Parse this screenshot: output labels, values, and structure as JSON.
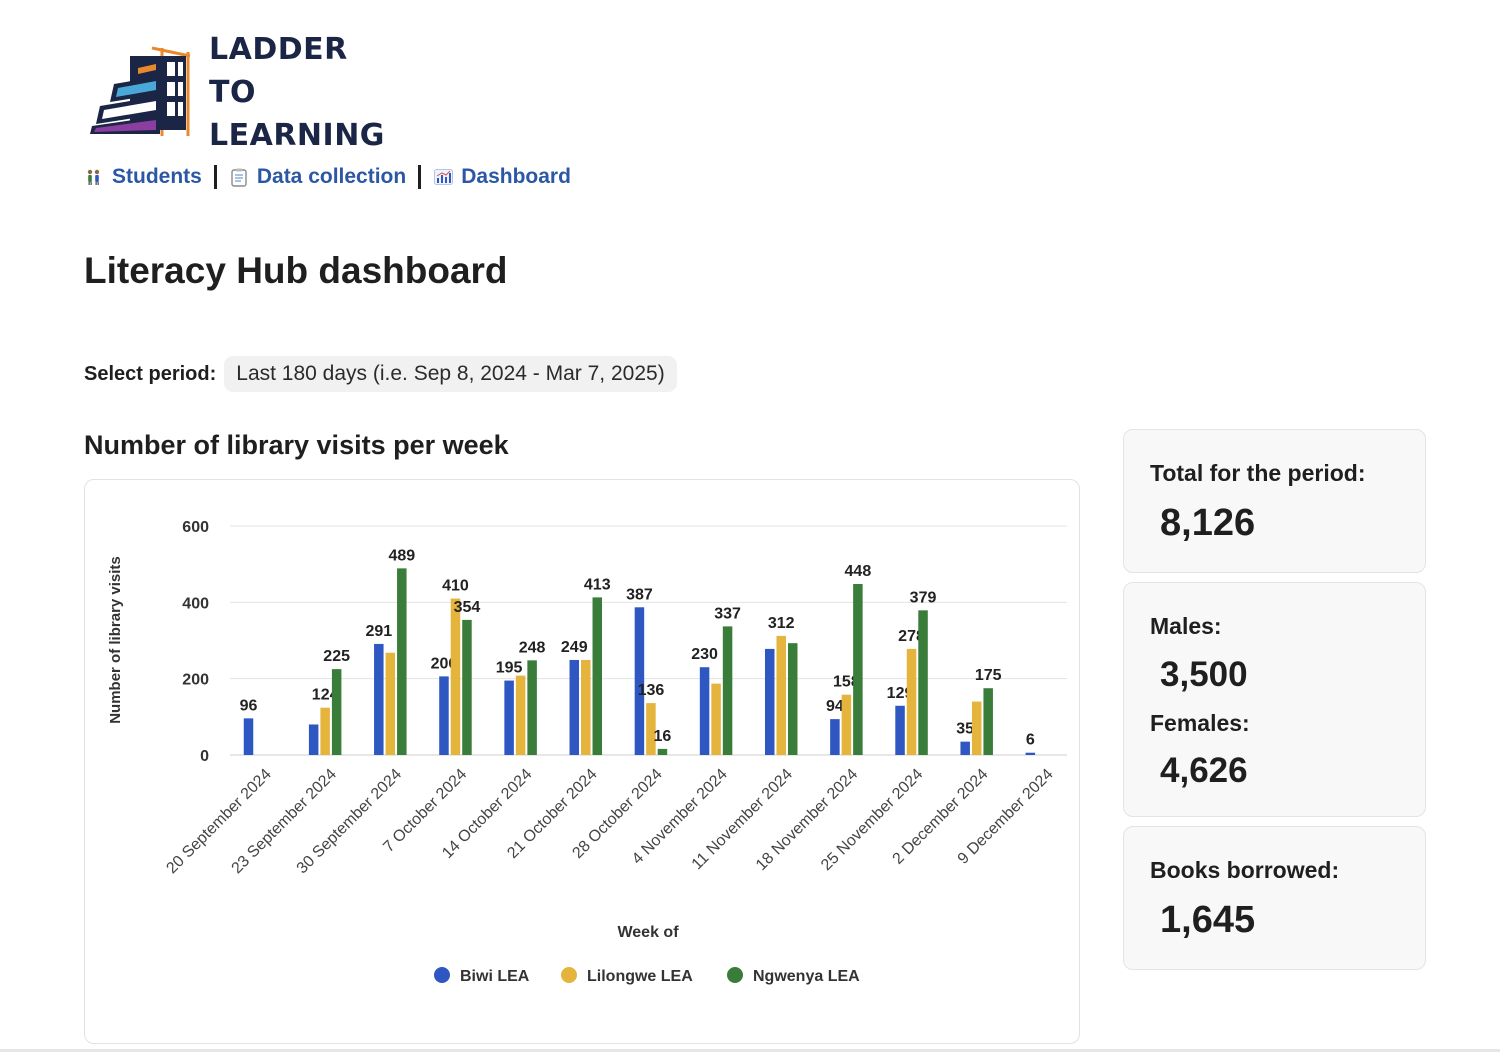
{
  "logo": {
    "line1": "LADDER",
    "line2": "TO LEARNING"
  },
  "nav": {
    "items": [
      {
        "label": "Students",
        "icon": "people-icon"
      },
      {
        "label": "Data collection",
        "icon": "clipboard-icon"
      },
      {
        "label": "Dashboard",
        "icon": "bar-chart-icon"
      }
    ]
  },
  "page_title": "Literacy Hub dashboard",
  "period": {
    "label": "Select period:",
    "value": "Last 180 days (i.e. Sep 8, 2024 - Mar 7, 2025)"
  },
  "chart_section_title": "Number of library visits per week",
  "stats": {
    "total_label": "Total for the period:",
    "total_value": "8,126",
    "males_label": "Males:",
    "males_value": "3,500",
    "females_label": "Females:",
    "females_value": "4,626",
    "books_label": "Books borrowed:",
    "books_value": "1,645"
  },
  "chart_data": {
    "type": "bar",
    "title": "Number of library visits per week",
    "xlabel": "Week of",
    "ylabel": "Number of library visits",
    "ylim": [
      0,
      600
    ],
    "yticks": [
      0,
      200,
      400,
      600
    ],
    "grid": true,
    "legend_position": "bottom",
    "categories": [
      "20 September 2024",
      "23 September 2024",
      "30 September 2024",
      "7 October 2024",
      "14 October 2024",
      "21 October 2024",
      "28 October 2024",
      "4 November 2024",
      "11 November 2024",
      "18 November 2024",
      "25 November 2024",
      "2 December 2024",
      "9 December 2024"
    ],
    "series": [
      {
        "name": "Biwi LEA",
        "color": "#2f57c1",
        "values": [
          96,
          80,
          291,
          206,
          195,
          249,
          387,
          230,
          278,
          94,
          129,
          35,
          6
        ],
        "labels": [
          "96",
          null,
          "291",
          "206",
          "195",
          "249",
          "387",
          "230",
          null,
          "94",
          "129",
          "35",
          "6"
        ]
      },
      {
        "name": "Lilongwe LEA",
        "color": "#e4b43d",
        "values": [
          0,
          124,
          268,
          410,
          208,
          249,
          136,
          187,
          312,
          158,
          278,
          140,
          0
        ],
        "labels": [
          null,
          "124",
          null,
          "410",
          null,
          null,
          "136",
          null,
          "312",
          "158",
          "278",
          null,
          null
        ]
      },
      {
        "name": "Ngwenya LEA",
        "color": "#3a7d3a",
        "values": [
          0,
          225,
          489,
          354,
          248,
          413,
          16,
          337,
          293,
          448,
          379,
          175,
          0
        ],
        "labels": [
          null,
          "225",
          "489",
          "354",
          "248",
          "413",
          "16",
          "337",
          null,
          "448",
          "379",
          "175",
          null
        ]
      }
    ]
  }
}
